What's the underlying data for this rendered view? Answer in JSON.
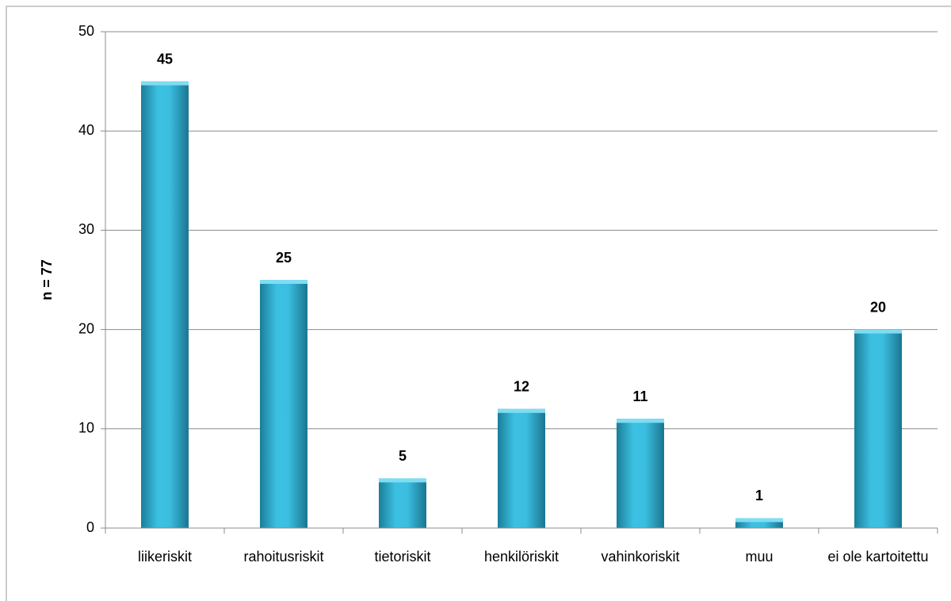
{
  "chart_data": {
    "type": "bar",
    "y_label": "n = 77",
    "categories": [
      "liikeriskit",
      "rahoitusriskit",
      "tietoriskit",
      "henkilöriskit",
      "vahinkoriskit",
      "muu",
      "ei ole kartoitettu"
    ],
    "values": [
      45,
      25,
      5,
      12,
      11,
      1,
      20
    ],
    "color": "#2fb3d6",
    "ylim": [
      0,
      50
    ],
    "yticks": [
      0,
      10,
      20,
      30,
      40,
      50
    ],
    "grid": true
  }
}
